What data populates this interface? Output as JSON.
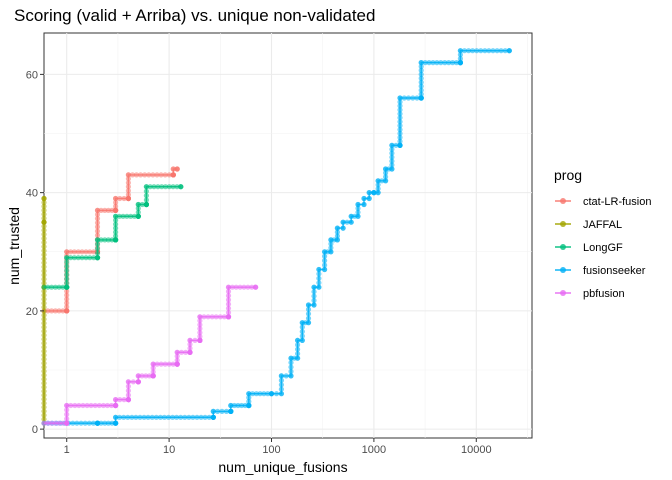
{
  "chart_data": {
    "type": "line",
    "title": "Scoring (valid + Arriba) vs. unique non-validated",
    "xlabel": "num_unique_fusions",
    "ylabel": "num_trusted",
    "x_scale": "log10",
    "xlim": [
      0.6,
      35000
    ],
    "ylim": [
      -1.5,
      67
    ],
    "x_ticks": [
      1,
      10,
      100,
      1000,
      10000
    ],
    "x_tick_labels": [
      "1",
      "10",
      "100",
      "1000",
      "10000"
    ],
    "y_ticks": [
      0,
      20,
      40,
      60
    ],
    "y_tick_labels": [
      "0",
      "20",
      "40",
      "60"
    ],
    "grid": true,
    "legend": {
      "title": "prog",
      "position": "right"
    },
    "series": [
      {
        "name": "ctat-LR-fusion",
        "color": "#F8766D",
        "points": [
          [
            0.6,
            20
          ],
          [
            1,
            20
          ],
          [
            1,
            30
          ],
          [
            2,
            30
          ],
          [
            2,
            37
          ],
          [
            3,
            37
          ],
          [
            3,
            39
          ],
          [
            4,
            39
          ],
          [
            4,
            43
          ],
          [
            11,
            43
          ],
          [
            11,
            44
          ],
          [
            12,
            44
          ]
        ]
      },
      {
        "name": "JAFFAL",
        "color": "#A3A500",
        "points": [
          [
            0.6,
            39
          ],
          [
            0.6,
            35
          ],
          [
            0.6,
            24
          ],
          [
            0.6,
            1
          ]
        ]
      },
      {
        "name": "LongGF",
        "color": "#00BF7D",
        "points": [
          [
            0.6,
            24
          ],
          [
            1,
            24
          ],
          [
            1,
            29
          ],
          [
            2,
            29
          ],
          [
            2,
            32
          ],
          [
            3,
            32
          ],
          [
            3,
            36
          ],
          [
            5,
            36
          ],
          [
            5,
            38
          ],
          [
            6,
            38
          ],
          [
            6,
            41
          ],
          [
            13,
            41
          ]
        ]
      },
      {
        "name": "fusionseeker",
        "color": "#00B0F6",
        "points": [
          [
            0.6,
            1
          ],
          [
            2,
            1
          ],
          [
            2,
            1
          ],
          [
            3,
            1
          ],
          [
            3,
            2
          ],
          [
            27,
            2
          ],
          [
            27,
            3
          ],
          [
            40,
            3
          ],
          [
            40,
            4
          ],
          [
            60,
            4
          ],
          [
            60,
            6
          ],
          [
            100,
            6
          ],
          [
            125,
            9
          ],
          [
            155,
            12
          ],
          [
            180,
            15
          ],
          [
            200,
            18
          ],
          [
            230,
            21
          ],
          [
            260,
            24
          ],
          [
            290,
            27
          ],
          [
            330,
            30
          ],
          [
            380,
            32
          ],
          [
            440,
            34
          ],
          [
            500,
            35
          ],
          [
            600,
            36
          ],
          [
            700,
            38
          ],
          [
            800,
            39
          ],
          [
            900,
            40
          ],
          [
            1000,
            40
          ],
          [
            1100,
            42
          ],
          [
            1300,
            44
          ],
          [
            1500,
            48
          ],
          [
            1800,
            48
          ],
          [
            1800,
            56
          ],
          [
            2900,
            56
          ],
          [
            2900,
            62
          ],
          [
            7000,
            62
          ],
          [
            7000,
            64
          ],
          [
            21000,
            64
          ]
        ]
      },
      {
        "name": "pbfusion",
        "color": "#E76BF3",
        "points": [
          [
            0.6,
            1
          ],
          [
            1,
            1
          ],
          [
            1,
            4
          ],
          [
            3,
            4
          ],
          [
            3,
            5
          ],
          [
            4,
            5
          ],
          [
            4,
            8
          ],
          [
            5,
            8
          ],
          [
            5,
            9
          ],
          [
            7,
            9
          ],
          [
            7,
            11
          ],
          [
            12,
            11
          ],
          [
            12,
            13
          ],
          [
            16,
            13
          ],
          [
            16,
            15
          ],
          [
            20,
            15
          ],
          [
            20,
            19
          ],
          [
            38,
            19
          ],
          [
            38,
            24
          ],
          [
            70,
            24
          ]
        ]
      }
    ]
  }
}
